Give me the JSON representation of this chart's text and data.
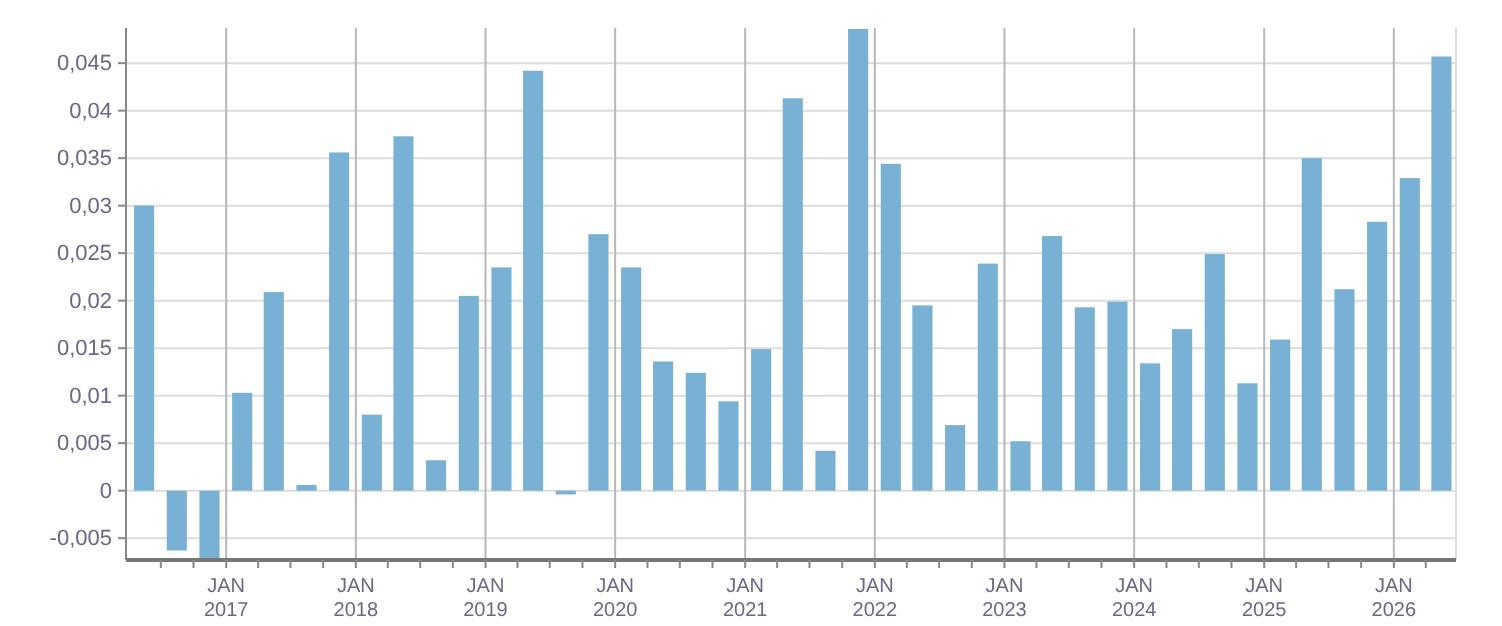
{
  "chart_data": {
    "type": "bar",
    "color": "#78b1d3",
    "x": [
      "2016-05-15",
      "2016-08-15",
      "2016-11-15",
      "2017-02-15",
      "2017-05-15",
      "2017-08-15",
      "2017-11-15",
      "2018-02-15",
      "2018-05-15",
      "2018-08-15",
      "2018-11-15",
      "2019-02-15",
      "2019-05-15",
      "2019-08-15",
      "2019-11-15",
      "2020-02-15",
      "2020-05-15",
      "2020-08-15",
      "2020-11-15",
      "2021-02-15",
      "2021-05-15",
      "2021-08-15",
      "2021-11-15",
      "2022-02-15",
      "2022-05-15",
      "2022-08-15",
      "2022-11-15",
      "2023-02-15",
      "2023-05-15",
      "2023-08-15",
      "2023-11-15",
      "2024-02-15",
      "2024-05-15",
      "2024-08-15",
      "2024-11-15",
      "2025-02-15",
      "2025-05-15",
      "2025-08-15",
      "2025-11-15",
      "2026-02-15",
      "2026-05-15"
    ],
    "values": [
      0.03,
      -0.0063,
      -0.0073,
      0.0103,
      0.0209,
      0.0006,
      0.0356,
      0.008,
      0.0373,
      0.0032,
      0.0205,
      0.0235,
      0.0442,
      -0.0004,
      0.027,
      0.0235,
      0.0136,
      0.0124,
      0.0094,
      0.0149,
      0.0413,
      0.0042,
      0.0486,
      0.0344,
      0.0195,
      0.0069,
      0.0239,
      0.0052,
      0.0268,
      0.0193,
      0.0199,
      0.0134,
      0.017,
      0.0249,
      0.0113,
      0.0159,
      0.035,
      0.0212,
      0.0283,
      0.0329,
      0.0457
    ],
    "ylim": [
      -0.0073,
      0.0487
    ],
    "yticks": [
      {
        "value": -0.005,
        "label": "-0,005"
      },
      {
        "value": 0,
        "label": "0"
      },
      {
        "value": 0.005,
        "label": "0,005"
      },
      {
        "value": 0.01,
        "label": "0,01"
      },
      {
        "value": 0.015,
        "label": "0,015"
      },
      {
        "value": 0.02,
        "label": "0,02"
      },
      {
        "value": 0.025,
        "label": "0,025"
      },
      {
        "value": 0.03,
        "label": "0,03"
      },
      {
        "value": 0.035,
        "label": "0,035"
      },
      {
        "value": 0.04,
        "label": "0,04"
      },
      {
        "value": 0.045,
        "label": "0,045"
      }
    ],
    "xlim": [
      "2016-03-25",
      "2026-06-25"
    ],
    "xticks": [
      {
        "value": "2016-07-01",
        "label": null
      },
      {
        "value": "2016-10-01",
        "label": null
      },
      {
        "value": "2017-01-01",
        "label": "JAN 2017"
      },
      {
        "value": "2017-04-01",
        "label": null
      },
      {
        "value": "2017-07-01",
        "label": null
      },
      {
        "value": "2017-10-01",
        "label": null
      },
      {
        "value": "2018-01-01",
        "label": "JAN 2018"
      },
      {
        "value": "2018-04-01",
        "label": null
      },
      {
        "value": "2018-07-01",
        "label": null
      },
      {
        "value": "2018-10-01",
        "label": null
      },
      {
        "value": "2019-01-01",
        "label": "JAN 2019"
      },
      {
        "value": "2019-04-01",
        "label": null
      },
      {
        "value": "2019-07-01",
        "label": null
      },
      {
        "value": "2019-10-01",
        "label": null
      },
      {
        "value": "2020-01-01",
        "label": "JAN 2020"
      },
      {
        "value": "2020-04-01",
        "label": null
      },
      {
        "value": "2020-07-01",
        "label": null
      },
      {
        "value": "2020-10-01",
        "label": null
      },
      {
        "value": "2021-01-01",
        "label": "JAN 2021"
      },
      {
        "value": "2021-04-01",
        "label": null
      },
      {
        "value": "2021-07-01",
        "label": null
      },
      {
        "value": "2021-10-01",
        "label": null
      },
      {
        "value": "2022-01-01",
        "label": "JAN 2022"
      },
      {
        "value": "2022-04-01",
        "label": null
      },
      {
        "value": "2022-07-01",
        "label": null
      },
      {
        "value": "2022-10-01",
        "label": null
      },
      {
        "value": "2023-01-01",
        "label": "JAN 2023"
      },
      {
        "value": "2023-04-01",
        "label": null
      },
      {
        "value": "2023-07-01",
        "label": null
      },
      {
        "value": "2023-10-01",
        "label": null
      },
      {
        "value": "2024-01-01",
        "label": "JAN 2024"
      },
      {
        "value": "2024-04-01",
        "label": null
      },
      {
        "value": "2024-07-01",
        "label": null
      },
      {
        "value": "2024-10-01",
        "label": null
      },
      {
        "value": "2025-01-01",
        "label": "JAN 2025"
      },
      {
        "value": "2025-04-01",
        "label": null
      },
      {
        "value": "2025-07-01",
        "label": null
      },
      {
        "value": "2025-10-01",
        "label": null
      },
      {
        "value": "2026-01-01",
        "label": "JAN 2026"
      },
      {
        "value": "2026-04-01",
        "label": null
      }
    ],
    "grid": true
  }
}
